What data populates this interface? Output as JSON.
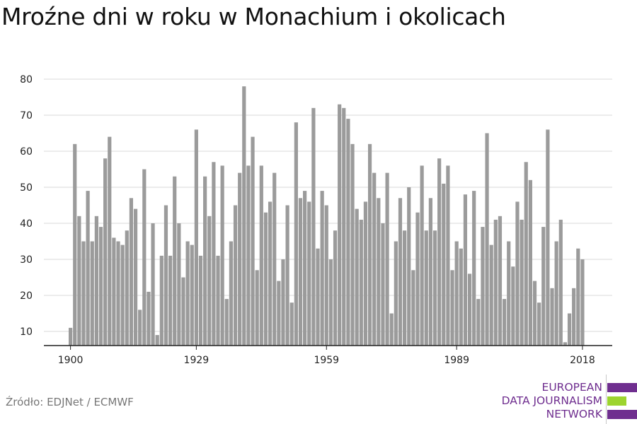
{
  "title": "Mroźne dni w roku w Monachium i okolicach",
  "source": "Źródło: EDJNet / ECMWF",
  "logo": {
    "lines": [
      "EUROPEAN",
      "DATA JOURNALISM",
      "NETWORK"
    ],
    "colors": {
      "purple": "#6f2e8f",
      "green": "#9dd42f"
    }
  },
  "colors": {
    "bar": "#9b9b9b",
    "grid": "#d9d9d9",
    "axis": "#222222"
  },
  "chart_data": {
    "type": "bar",
    "title": "Mroźne dni w roku w Monachium i okolicach",
    "xlabel": "",
    "ylabel": "",
    "ylim": [
      6,
      82
    ],
    "yticks": [
      10,
      20,
      30,
      40,
      50,
      60,
      70,
      80
    ],
    "xtick_labels": [
      "1900",
      "1929",
      "1959",
      "1989",
      "2018"
    ],
    "grid": true,
    "legend": "none",
    "categories": [
      1900,
      1901,
      1902,
      1903,
      1904,
      1905,
      1906,
      1907,
      1908,
      1909,
      1910,
      1911,
      1912,
      1913,
      1914,
      1915,
      1916,
      1917,
      1918,
      1919,
      1920,
      1921,
      1922,
      1923,
      1924,
      1925,
      1926,
      1927,
      1928,
      1929,
      1930,
      1931,
      1932,
      1933,
      1934,
      1935,
      1936,
      1937,
      1938,
      1939,
      1940,
      1941,
      1942,
      1943,
      1944,
      1945,
      1946,
      1947,
      1948,
      1949,
      1950,
      1951,
      1952,
      1953,
      1954,
      1955,
      1956,
      1957,
      1958,
      1959,
      1960,
      1961,
      1962,
      1963,
      1964,
      1965,
      1966,
      1967,
      1968,
      1969,
      1970,
      1971,
      1972,
      1973,
      1974,
      1975,
      1976,
      1977,
      1978,
      1979,
      1980,
      1981,
      1982,
      1983,
      1984,
      1985,
      1986,
      1987,
      1988,
      1989,
      1990,
      1991,
      1992,
      1993,
      1994,
      1995,
      1996,
      1997,
      1998,
      1999,
      2000,
      2001,
      2002,
      2003,
      2004,
      2005,
      2006,
      2007,
      2008,
      2009,
      2010,
      2011,
      2012,
      2013,
      2014,
      2015,
      2016,
      2017,
      2018
    ],
    "values": [
      11,
      62,
      42,
      35,
      49,
      35,
      42,
      39,
      58,
      64,
      36,
      35,
      34,
      38,
      47,
      44,
      16,
      55,
      21,
      40,
      9,
      31,
      45,
      31,
      53,
      40,
      25,
      35,
      34,
      66,
      31,
      53,
      42,
      57,
      31,
      56,
      19,
      35,
      45,
      54,
      78,
      56,
      64,
      27,
      56,
      43,
      46,
      54,
      24,
      30,
      45,
      18,
      68,
      47,
      49,
      46,
      72,
      33,
      49,
      45,
      30,
      38,
      73,
      72,
      69,
      62,
      44,
      41,
      46,
      62,
      54,
      47,
      40,
      54,
      15,
      35,
      47,
      38,
      50,
      27,
      43,
      56,
      38,
      47,
      38,
      58,
      51,
      56,
      27,
      35,
      33,
      48,
      26,
      49,
      19,
      39,
      65,
      34,
      41,
      42,
      19,
      35,
      28,
      46,
      41,
      57,
      52,
      24,
      18,
      39,
      66,
      22,
      35,
      41,
      7,
      15,
      22,
      33,
      30
    ]
  }
}
